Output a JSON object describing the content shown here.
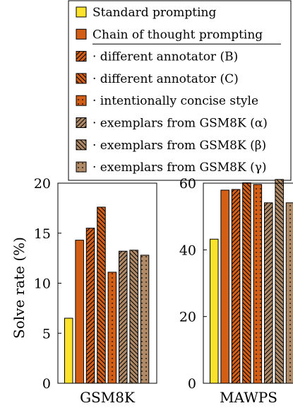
{
  "chart_data": {
    "type": "bar",
    "ylabel": "Solve rate (%)",
    "legend": {
      "placement": "top",
      "items": [
        {
          "label": "Standard prompting",
          "color": "#FDE22B",
          "pattern": "solid"
        },
        {
          "label": "Chain of thought prompting",
          "color": "#D35F17",
          "pattern": "solid"
        },
        {
          "label": "· different annotator (B)",
          "color": "#D35F17",
          "pattern": "north-east-lines"
        },
        {
          "label": "· different annotator (C)",
          "color": "#D35F17",
          "pattern": "north-west-lines"
        },
        {
          "label": "· intentionally concise style",
          "color": "#D35F17",
          "pattern": "dots"
        },
        {
          "label": "· exemplars from GSM8K (α)",
          "color": "#B08A66",
          "pattern": "north-east-lines"
        },
        {
          "label": "· exemplars from GSM8K (β)",
          "color": "#B08A66",
          "pattern": "north-west-lines"
        },
        {
          "label": "· exemplars from GSM8K (γ)",
          "color": "#B08A66",
          "pattern": "dots"
        }
      ]
    },
    "panels": [
      {
        "category": "GSM8K",
        "ylim": [
          0,
          20
        ],
        "yticks": [
          0,
          5,
          10,
          15,
          20
        ],
        "values": [
          6.5,
          14.3,
          15.5,
          17.6,
          11.1,
          13.2,
          13.3,
          12.8
        ]
      },
      {
        "category": "MAWPS",
        "ylim": [
          0,
          60
        ],
        "yticks": [
          0,
          20,
          40,
          60
        ],
        "values": [
          43.2,
          57.9,
          58.1,
          60.1,
          59.6,
          54.1,
          61.1,
          54.1
        ]
      }
    ]
  }
}
